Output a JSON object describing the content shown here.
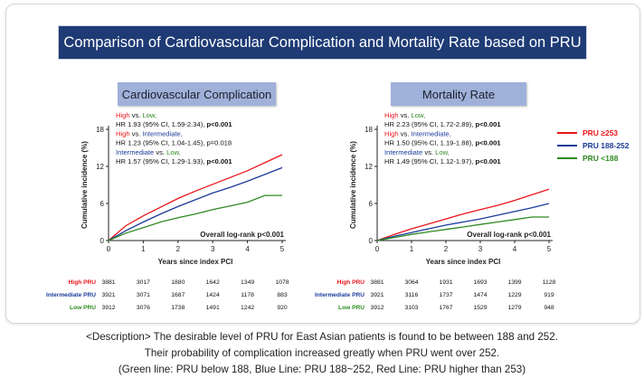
{
  "page_title": "Comparison of Cardiovascular Complication and Mortality Rate based on PRU",
  "colors": {
    "high": "#e8161b",
    "intermediate": "#1a3b9a",
    "low": "#2f8a22",
    "title_bg": "#1f3b75",
    "chip_bg": "#9fb1d9"
  },
  "legend": [
    {
      "label": "PRU ≥253",
      "color": "#e8161b"
    },
    {
      "label": "PRU 188-252",
      "color": "#1a3b9a"
    },
    {
      "label": "PRU <188",
      "color": "#2f8a22"
    }
  ],
  "chart_data": [
    {
      "type": "line",
      "title": "Cardiovascular Complication",
      "xlabel": "Years since index PCI",
      "ylabel": "Cumulative incidence (%)",
      "xlim": [
        0,
        5
      ],
      "ylim": [
        0,
        18
      ],
      "xticks": [
        "0",
        "1",
        "2",
        "3",
        "4",
        "5"
      ],
      "yticks": [
        "0",
        "6",
        "12",
        "18"
      ],
      "x": [
        0,
        0.5,
        1,
        1.5,
        2,
        2.5,
        3,
        3.5,
        4,
        4.5,
        5
      ],
      "series": [
        {
          "name": "High PRU",
          "color": "#e8161b",
          "values": [
            0,
            2.4,
            4.0,
            5.4,
            6.8,
            8.0,
            9.1,
            10.2,
            11.3,
            12.6,
            13.9
          ]
        },
        {
          "name": "Intermediate PRU",
          "color": "#1a3b9a",
          "values": [
            0,
            1.6,
            3.0,
            4.3,
            5.5,
            6.6,
            7.7,
            8.6,
            9.6,
            10.7,
            11.8
          ]
        },
        {
          "name": "Low PRU",
          "color": "#2f8a22",
          "values": [
            0,
            1.2,
            2.1,
            3.0,
            3.7,
            4.3,
            5.0,
            5.6,
            6.2,
            7.3,
            7.3
          ]
        }
      ],
      "annotations": [
        {
          "parts": [
            {
              "t": "High",
              "c": "high"
            },
            {
              "t": " vs. ",
              "c": "text"
            },
            {
              "t": "Low,",
              "c": "low"
            }
          ]
        },
        {
          "parts": [
            {
              "t": "HR 1.93 (95% CI, 1.59-2.34), ",
              "c": "text"
            },
            {
              "t": "p<0.001",
              "c": "bold"
            }
          ]
        },
        {
          "parts": [
            {
              "t": "High",
              "c": "high"
            },
            {
              "t": " vs. ",
              "c": "text"
            },
            {
              "t": "Intermediate,",
              "c": "intermediate"
            }
          ]
        },
        {
          "parts": [
            {
              "t": "HR 1.23 (95% CI, 1.04-1.45), p=0.018",
              "c": "text"
            }
          ]
        },
        {
          "parts": [
            {
              "t": "Intermediate",
              "c": "intermediate"
            },
            {
              "t": " vs. ",
              "c": "text"
            },
            {
              "t": "Low,",
              "c": "low"
            }
          ]
        },
        {
          "parts": [
            {
              "t": "HR 1.57 (95% CI, 1.29-1.93), ",
              "c": "text"
            },
            {
              "t": "p<0.001",
              "c": "bold"
            }
          ]
        }
      ],
      "logrank": "Overall log-rank p<0.001",
      "risk_table": [
        {
          "label": "High PRU",
          "color": "#e8161b",
          "values": [
            "3881",
            "3017",
            "1880",
            "1642",
            "1349",
            "1078"
          ]
        },
        {
          "label": "Intermediate PRU",
          "color": "#1a3b9a",
          "values": [
            "3921",
            "3071",
            "1687",
            "1424",
            "1178",
            "883"
          ]
        },
        {
          "label": "Low PRU",
          "color": "#2f8a22",
          "values": [
            "3912",
            "3076",
            "1738",
            "1491",
            "1242",
            "920"
          ]
        }
      ]
    },
    {
      "type": "line",
      "title": "Mortality Rate",
      "xlabel": "Years since index PCI",
      "ylabel": "Cumulative incidence (%)",
      "xlim": [
        0,
        5
      ],
      "ylim": [
        0,
        18
      ],
      "xticks": [
        "0",
        "1",
        "2",
        "3",
        "4",
        "5"
      ],
      "yticks": [
        "0",
        "6",
        "12",
        "18"
      ],
      "x": [
        0,
        0.5,
        1,
        1.5,
        2,
        2.5,
        3,
        3.5,
        4,
        4.5,
        5
      ],
      "series": [
        {
          "name": "High PRU",
          "color": "#e8161b",
          "values": [
            0,
            1.0,
            1.9,
            2.7,
            3.5,
            4.3,
            5.0,
            5.7,
            6.5,
            7.4,
            8.3
          ]
        },
        {
          "name": "Intermediate PRU",
          "color": "#1a3b9a",
          "values": [
            0,
            0.7,
            1.3,
            1.9,
            2.5,
            3.0,
            3.5,
            4.1,
            4.7,
            5.3,
            6.0
          ]
        },
        {
          "name": "Low PRU",
          "color": "#2f8a22",
          "values": [
            0,
            0.5,
            1.0,
            1.4,
            1.8,
            2.2,
            2.6,
            3.0,
            3.4,
            3.8,
            3.8
          ]
        }
      ],
      "annotations": [
        {
          "parts": [
            {
              "t": "High",
              "c": "high"
            },
            {
              "t": " vs. ",
              "c": "text"
            },
            {
              "t": "Low,",
              "c": "low"
            }
          ]
        },
        {
          "parts": [
            {
              "t": "HR 2.23 (95% CI, 1.72-2.89), ",
              "c": "text"
            },
            {
              "t": "p<0.001",
              "c": "bold"
            }
          ]
        },
        {
          "parts": [
            {
              "t": "High",
              "c": "high"
            },
            {
              "t": " vs. ",
              "c": "text"
            },
            {
              "t": "Intermediate,",
              "c": "intermediate"
            }
          ]
        },
        {
          "parts": [
            {
              "t": "HR 1.50 (95% CI, 1.19-1.88), ",
              "c": "text"
            },
            {
              "t": "p<0.001",
              "c": "bold"
            }
          ]
        },
        {
          "parts": [
            {
              "t": "Intermediate",
              "c": "intermediate"
            },
            {
              "t": " vs. ",
              "c": "text"
            },
            {
              "t": "Low,",
              "c": "low"
            }
          ]
        },
        {
          "parts": [
            {
              "t": "HR 1.49 (95% CI, 1.12-1.97), ",
              "c": "text"
            },
            {
              "t": "p<0.001",
              "c": "bold"
            }
          ]
        }
      ],
      "logrank": "Overall log-rank p<0.001",
      "risk_table": [
        {
          "label": "High PRU",
          "color": "#e8161b",
          "values": [
            "3881",
            "3064",
            "1931",
            "1693",
            "1399",
            "1128"
          ]
        },
        {
          "label": "Intermediate PRU",
          "color": "#1a3b9a",
          "values": [
            "3921",
            "3116",
            "1737",
            "1474",
            "1229",
            "919"
          ]
        },
        {
          "label": "Low PRU",
          "color": "#2f8a22",
          "values": [
            "3912",
            "3103",
            "1767",
            "1529",
            "1279",
            "948"
          ]
        }
      ]
    }
  ],
  "description": [
    "<Description> The desirable level of PRU for East Asian patients is found to be between 188 and 252.",
    "Their probability of complication increased greatly when PRU went over 252.",
    "(Green line: PRU below 188, Blue Line: PRU 188~252, Red Line: PRU higher than 253)"
  ]
}
